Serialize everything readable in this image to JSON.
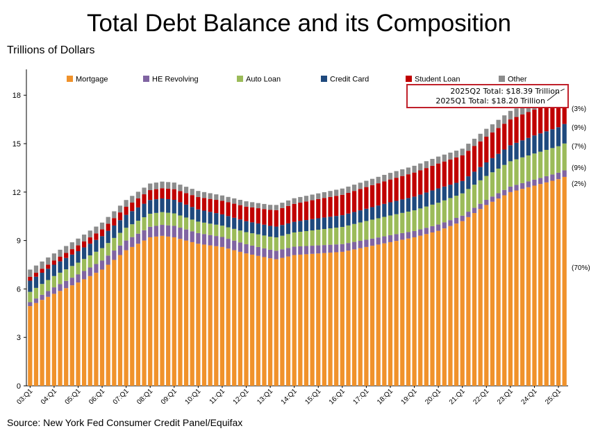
{
  "title": "Total Debt Balance and its Composition",
  "units_label": "Trillions of Dollars",
  "source": "Source: New York Fed Consumer Credit Panel/Equifax",
  "colors": {
    "Mortgage": "#f0922b",
    "HE Revolving": "#8064a2",
    "Auto Loan": "#9bbb59",
    "Credit Card": "#1f497d",
    "Student Loan": "#c00000",
    "Other": "#8c8c8c",
    "annotation_box": "#c0202a"
  },
  "chart_data": {
    "type": "bar",
    "stacked": true,
    "ylim": [
      0,
      19.6
    ],
    "yticks": [
      0,
      3,
      6,
      9,
      12,
      15,
      18
    ],
    "grid": false,
    "legend_position": "top",
    "x_tick_labels": [
      "03:Q1",
      "04:Q1",
      "05:Q1",
      "06:Q1",
      "07:Q1",
      "08:Q1",
      "09:Q1",
      "10:Q1",
      "11:Q1",
      "12:Q1",
      "13:Q1",
      "14:Q1",
      "15:Q1",
      "16:Q1",
      "17:Q1",
      "18:Q1",
      "19:Q1",
      "20:Q1",
      "21:Q1",
      "22:Q1",
      "23:Q1",
      "24:Q1",
      "25:Q1"
    ],
    "first_quarter": "2003Q1",
    "last_quarter": "2025Q2",
    "series": [
      {
        "name": "Mortgage",
        "anchors": {
          "2003Q1": 4.94,
          "2004Q1": 5.7,
          "2005Q1": 6.4,
          "2006Q1": 7.2,
          "2007Q1": 8.4,
          "2008Q1": 9.2,
          "2008Q3": 9.29,
          "2009Q1": 9.2,
          "2010Q1": 8.8,
          "2011Q1": 8.6,
          "2012Q1": 8.2,
          "2013Q1": 7.9,
          "2013Q2": 7.84,
          "2014Q1": 8.1,
          "2015Q1": 8.2,
          "2016Q1": 8.3,
          "2017Q1": 8.6,
          "2018Q1": 8.9,
          "2019Q1": 9.2,
          "2020Q1": 9.6,
          "2021Q1": 10.2,
          "2022Q1": 11.2,
          "2023Q1": 12.0,
          "2024Q1": 12.4,
          "2025Q1": 12.8,
          "2025Q2": 12.94
        }
      },
      {
        "name": "HE Revolving",
        "anchors": {
          "2003Q1": 0.24,
          "2004Q1": 0.4,
          "2005Q1": 0.5,
          "2006Q1": 0.56,
          "2007Q1": 0.6,
          "2008Q1": 0.65,
          "2009Q1": 0.71,
          "2010Q1": 0.66,
          "2011Q1": 0.62,
          "2012Q1": 0.57,
          "2013Q1": 0.53,
          "2014Q1": 0.52,
          "2015Q1": 0.5,
          "2016Q1": 0.48,
          "2017Q1": 0.45,
          "2018Q1": 0.43,
          "2019Q1": 0.39,
          "2020Q1": 0.39,
          "2021Q1": 0.34,
          "2022Q1": 0.32,
          "2023Q1": 0.34,
          "2024Q1": 0.37,
          "2025Q1": 0.4,
          "2025Q2": 0.41
        }
      },
      {
        "name": "Auto Loan",
        "anchors": {
          "2003Q1": 0.64,
          "2004Q1": 0.7,
          "2005Q1": 0.73,
          "2006Q1": 0.77,
          "2007Q1": 0.79,
          "2008Q1": 0.81,
          "2009Q1": 0.77,
          "2010Q1": 0.71,
          "2011Q1": 0.7,
          "2012Q1": 0.75,
          "2013Q1": 0.81,
          "2014Q1": 0.88,
          "2015Q1": 0.97,
          "2016Q1": 1.06,
          "2017Q1": 1.16,
          "2018Q1": 1.22,
          "2019Q1": 1.28,
          "2020Q1": 1.35,
          "2021Q1": 1.38,
          "2022Q1": 1.48,
          "2023Q1": 1.57,
          "2024Q1": 1.62,
          "2025Q1": 1.64,
          "2025Q2": 1.66
        }
      },
      {
        "name": "Credit Card",
        "anchors": {
          "2003Q1": 0.69,
          "2004Q1": 0.7,
          "2005Q1": 0.71,
          "2006Q1": 0.74,
          "2007Q1": 0.8,
          "2008Q1": 0.85,
          "2009Q1": 0.84,
          "2010Q1": 0.76,
          "2011Q1": 0.7,
          "2012Q1": 0.68,
          "2013Q1": 0.67,
          "2014Q1": 0.66,
          "2015Q1": 0.71,
          "2016Q1": 0.73,
          "2017Q1": 0.76,
          "2018Q1": 0.82,
          "2019Q1": 0.85,
          "2020Q1": 0.89,
          "2021Q1": 0.77,
          "2022Q1": 0.84,
          "2023Q1": 0.99,
          "2024Q1": 1.12,
          "2025Q1": 1.18,
          "2025Q2": 1.21
        }
      },
      {
        "name": "Student Loan",
        "anchors": {
          "2003Q1": 0.24,
          "2004Q1": 0.26,
          "2005Q1": 0.36,
          "2006Q1": 0.42,
          "2007Q1": 0.5,
          "2008Q1": 0.61,
          "2009Q1": 0.66,
          "2010Q1": 0.76,
          "2011Q1": 0.84,
          "2012Q1": 0.9,
          "2013Q1": 0.99,
          "2014Q1": 1.11,
          "2015Q1": 1.19,
          "2016Q1": 1.26,
          "2017Q1": 1.34,
          "2018Q1": 1.41,
          "2019Q1": 1.49,
          "2020Q1": 1.54,
          "2021Q1": 1.58,
          "2022Q1": 1.59,
          "2023Q1": 1.6,
          "2024Q1": 1.6,
          "2025Q1": 1.63,
          "2025Q2": 1.64
        }
      },
      {
        "name": "Other",
        "anchors": {
          "2003Q1": 0.45,
          "2004Q1": 0.44,
          "2005Q1": 0.42,
          "2006Q1": 0.42,
          "2007Q1": 0.42,
          "2008Q1": 0.41,
          "2009Q1": 0.41,
          "2010Q1": 0.38,
          "2011Q1": 0.33,
          "2012Q1": 0.33,
          "2013Q1": 0.31,
          "2014Q1": 0.35,
          "2015Q1": 0.35,
          "2016Q1": 0.39,
          "2017Q1": 0.39,
          "2018Q1": 0.41,
          "2019Q1": 0.42,
          "2020Q1": 0.43,
          "2021Q1": 0.42,
          "2022Q1": 0.49,
          "2023Q1": 0.53,
          "2024Q1": 0.54,
          "2025Q1": 0.55,
          "2025Q2": 0.55
        }
      }
    ],
    "share_labels": [
      {
        "series": "Other",
        "text": "(3%)"
      },
      {
        "series": "Student Loan",
        "text": "(9%)"
      },
      {
        "series": "Credit Card",
        "text": "(7%)"
      },
      {
        "series": "Auto Loan",
        "text": "(9%)"
      },
      {
        "series": "HE Revolving",
        "text": "(2%)"
      },
      {
        "series": "Mortgage",
        "text": "(70%)"
      }
    ],
    "annotations": [
      {
        "text": "2025Q2 Total: $18.39 Trillion",
        "quarter": "2025Q2",
        "value": 18.39
      },
      {
        "text": "2025Q1 Total: $18.20 Trillion",
        "quarter": "2025Q1",
        "value": 18.2
      }
    ]
  }
}
